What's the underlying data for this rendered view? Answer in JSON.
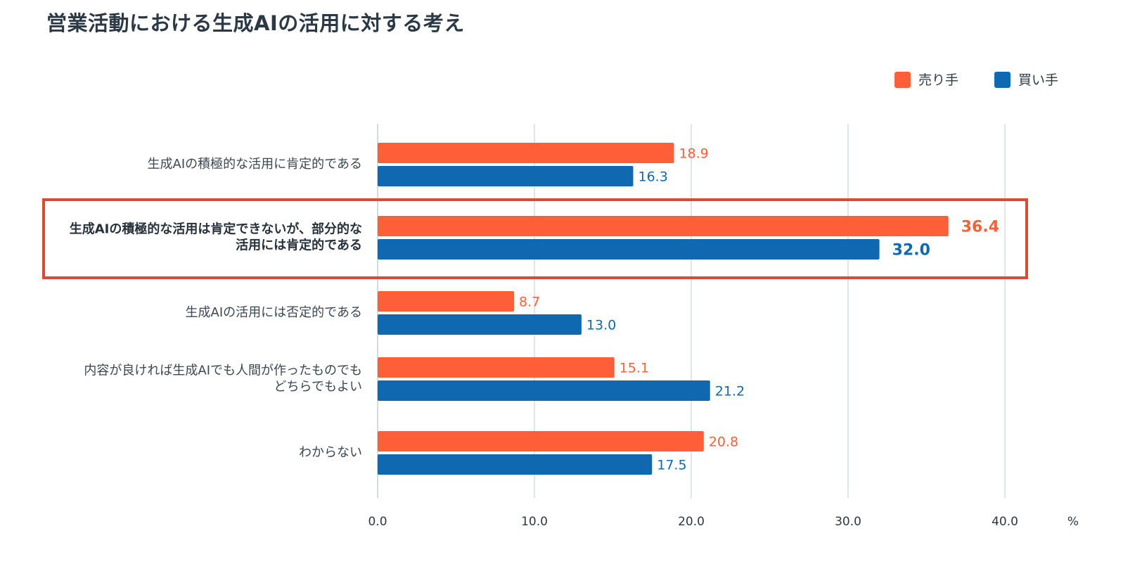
{
  "title": "営業活動における生成AIの活用に対する考え",
  "chart_data": {
    "type": "bar",
    "orientation": "horizontal",
    "title": "営業活動における生成AIの活用に対する考え",
    "categories": [
      [
        "生成AIの積極的な活用に肯定的である"
      ],
      [
        "生成AIの積極的な活用は肯定できないが、部分的な",
        "活用には肯定的である"
      ],
      [
        "生成AIの活用には否定的である"
      ],
      [
        "内容が良ければ生成AIでも人間が作ったものでも",
        "どちらでもよい"
      ],
      [
        "わからない"
      ]
    ],
    "highlighted_category_index": 1,
    "series": [
      {
        "name": "売り手",
        "color": "#fe5f38",
        "values": [
          18.9,
          36.4,
          8.7,
          15.1,
          20.8
        ]
      },
      {
        "name": "買い手",
        "color": "#0f68b0",
        "values": [
          16.3,
          32.0,
          13.0,
          21.2,
          17.5
        ]
      }
    ],
    "value_labels": [
      [
        "18.9",
        "36.4",
        "8.7",
        "15.1",
        "20.8"
      ],
      [
        "16.3",
        "32.0",
        "13.0",
        "21.2",
        "17.5"
      ]
    ],
    "xlim": [
      0,
      40
    ],
    "xticks": [
      "0.0",
      "10.0",
      "20.0",
      "30.0",
      "40.0"
    ],
    "xlabel": "%",
    "ylabel": "",
    "grid": true,
    "legend_position": "top-right"
  },
  "colors": {
    "seller": "#fe5f38",
    "buyer": "#0f68b0",
    "highlight": "#d94c31",
    "grid": "#dfe6ea",
    "text": "#2f3b45"
  }
}
